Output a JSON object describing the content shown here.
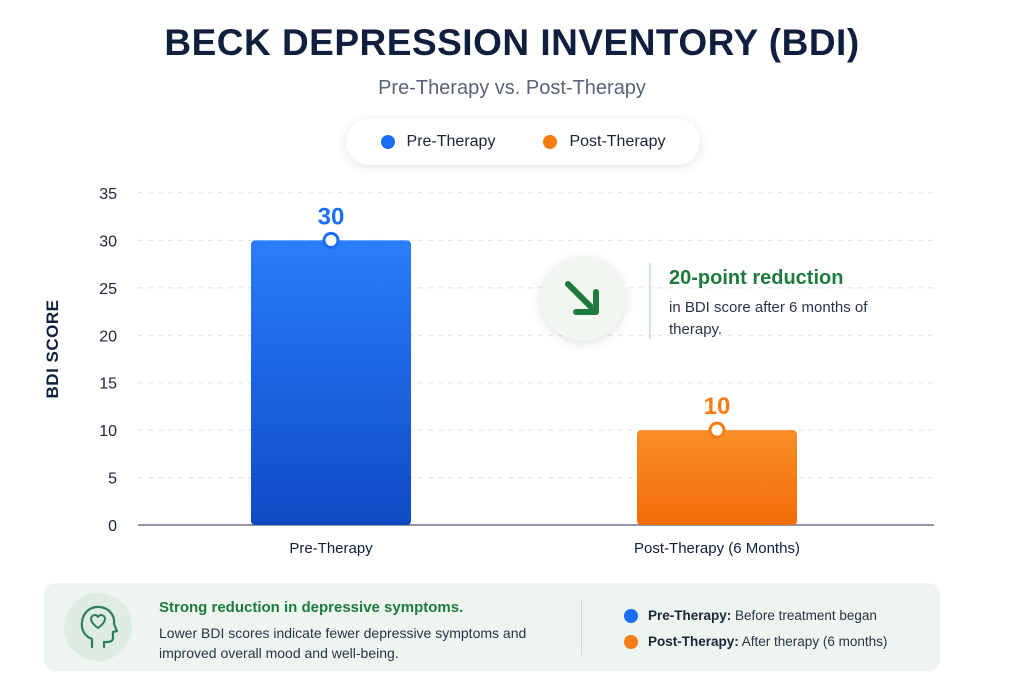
{
  "header": {
    "title": "BECK DEPRESSION INVENTORY (BDI)",
    "subtitle": "Pre-Therapy vs. Post-Therapy"
  },
  "legend": {
    "items": [
      {
        "label": "Pre-Therapy",
        "color": "#1a6ef5"
      },
      {
        "label": "Post-Therapy",
        "color": "#f57d14"
      }
    ]
  },
  "chart_data": {
    "type": "bar",
    "categories": [
      "Pre-Therapy",
      "Post-Therapy (6 Months)"
    ],
    "values": [
      30,
      10
    ],
    "colors": [
      "#1a6ef5",
      "#f57d14"
    ],
    "ylabel": "BDI SCORE",
    "ylim": [
      0,
      35
    ],
    "yticks": [
      0,
      5,
      10,
      15,
      20,
      25,
      30,
      35
    ],
    "grid": true,
    "legend_position": "top"
  },
  "callout": {
    "title": "20-point reduction",
    "text": "in BDI score after 6 months of therapy.",
    "icon": "arrow-down-right-icon"
  },
  "footer": {
    "icon": "head-heart-icon",
    "headline": "Strong reduction in depressive symptoms.",
    "body": "Lower BDI scores indicate fewer depressive symptoms and improved overall mood and well-being.",
    "legend": [
      {
        "term": "Pre-Therapy:",
        "desc": "Before treatment began",
        "color": "#1a6ef5"
      },
      {
        "term": "Post-Therapy:",
        "desc": "After therapy (6 months)",
        "color": "#f57d14"
      }
    ]
  }
}
